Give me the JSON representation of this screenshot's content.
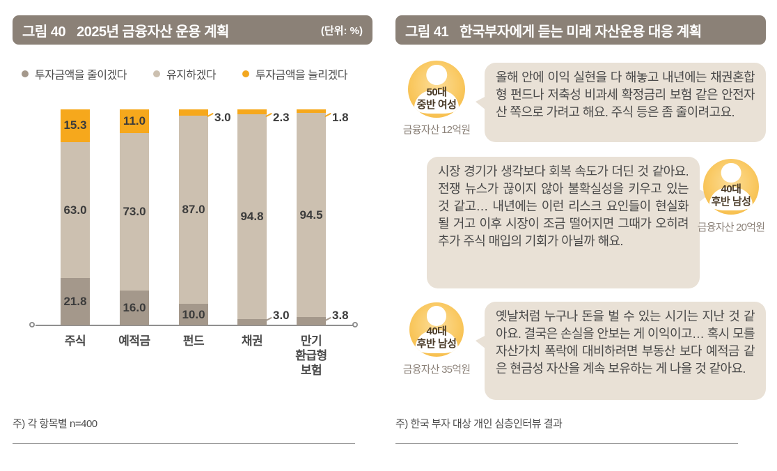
{
  "left_panel": {
    "figure_label": "그림 40",
    "title": "2025년 금융자산 운용 계획",
    "unit": "(단위: %)",
    "legend": [
      {
        "label": "투자금액을 줄이겠다",
        "color": "#a4988b"
      },
      {
        "label": "유지하겠다",
        "color": "#ccc0b0"
      },
      {
        "label": "투자금액을 늘리겠다",
        "color": "#f2a71f"
      }
    ],
    "note": "주) 각 항목별 n=400"
  },
  "chart_data": {
    "type": "bar",
    "stacked": true,
    "unit": "%",
    "title": "2025년 금융자산 운용 계획",
    "categories": [
      "주식",
      "예적금",
      "펀드",
      "채권",
      "만기\n환급형\n보험"
    ],
    "series": [
      {
        "name": "투자금액을 줄이겠다",
        "key": "reduce",
        "color": "#a4988b",
        "values": [
          21.8,
          16.0,
          10.0,
          3.0,
          3.8
        ]
      },
      {
        "name": "유지하겠다",
        "key": "maintain",
        "color": "#ccc0b0",
        "values": [
          63.0,
          73.0,
          87.0,
          94.8,
          94.5
        ]
      },
      {
        "name": "투자금액을 늘리겠다",
        "key": "increase",
        "color": "#f6a81c",
        "values": [
          15.3,
          11.0,
          3.0,
          2.3,
          1.8
        ]
      }
    ],
    "ylim": [
      0,
      100
    ],
    "grid": false,
    "legend_position": "top"
  },
  "right_panel": {
    "figure_label": "그림 41",
    "title": "한국부자에게 듣는 미래 자산운용 대응 계획",
    "interviews": [
      {
        "side": "left",
        "persona_line1": "50대",
        "persona_line2": "중반 여성",
        "assets": "금융자산 12억원",
        "quote": "올해 안에 이익 실현을 다 해놓고 내년에는 채권혼합형 펀드나 저축성 비과세 확정금리 보험 같은 안전자산 쪽으로 가려고 해요. 주식 등은 좀 줄이려고요."
      },
      {
        "side": "right",
        "persona_line1": "40대",
        "persona_line2": "후반 남성",
        "assets": "금융자산 20억원",
        "quote": "시장 경기가 생각보다 회복 속도가 더딘 것 같아요. 전쟁 뉴스가 끊이지 않아 불확실성을 키우고 있는 것 같고… 내년에는 이런 리스크 요인들이 현실화될 거고 이후 시장이 조금 떨어지면 그때가 오히려 추가 주식 매입의 기회가 아닐까 해요."
      },
      {
        "side": "left",
        "persona_line1": "40대",
        "persona_line2": "후반 남성",
        "assets": "금융자산 35억원",
        "quote": "옛날처럼 누구나 돈을 벌 수 있는 시기는 지난 것 같아요. 결국은 손실을 안보는 게 이익이고… 혹시 모를 자산가치 폭락에 대비하려면 부동산 보다 예적금 같은 현금성 자산을 계속 보유하는 게 나을 것 같아요."
      }
    ],
    "note": "주) 한국 부자 대상 개인 심층인터뷰 결과"
  }
}
